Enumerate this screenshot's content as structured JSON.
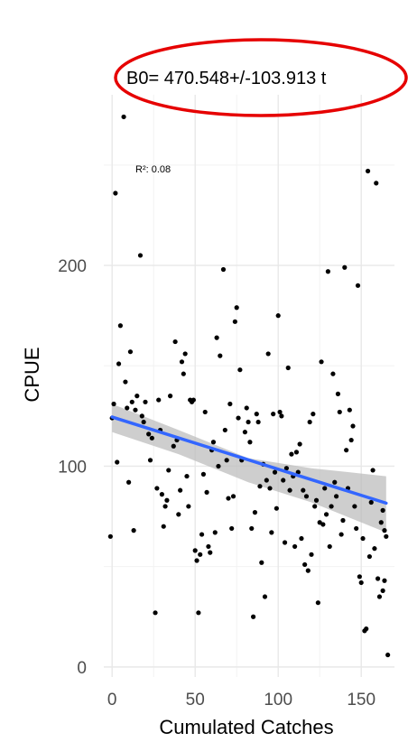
{
  "chart_data": {
    "type": "scatter",
    "title": "",
    "xlabel": "Cumulated Catches",
    "ylabel": "CPUE",
    "xlim": [
      -5,
      170
    ],
    "ylim": [
      -5,
      285
    ],
    "x_ticks": [
      0,
      50,
      100,
      150
    ],
    "y_ticks": [
      0,
      100,
      200
    ],
    "x_tick_labels": [
      "0",
      "50",
      "100",
      "150"
    ],
    "y_tick_labels": [
      "0",
      "100",
      "200"
    ],
    "grid": true,
    "annotation": "B0= 470.548+/-103.913 t",
    "annotation_highlight_color": "#e60000",
    "r2_label": "R²:  0.08",
    "point_color": "#000000",
    "fit": {
      "intercept": 124.5,
      "slope": -0.26,
      "x_range": [
        0,
        165
      ],
      "color": "#3366ff",
      "band_color": "#bdbdbd",
      "band_upper": [
        [
          0,
          131
        ],
        [
          40,
          118
        ],
        [
          82,
          104
        ],
        [
          120,
          99
        ],
        [
          165,
          95
        ]
      ],
      "band_lower": [
        [
          0,
          117
        ],
        [
          40,
          106
        ],
        [
          82,
          92
        ],
        [
          120,
          82
        ],
        [
          165,
          67
        ]
      ]
    },
    "points": [
      [
        -1,
        65
      ],
      [
        0,
        124
      ],
      [
        1,
        131
      ],
      [
        2,
        236
      ],
      [
        3,
        102
      ],
      [
        4,
        151
      ],
      [
        5,
        170
      ],
      [
        7,
        274
      ],
      [
        8,
        142
      ],
      [
        9,
        129
      ],
      [
        10,
        92
      ],
      [
        11,
        157
      ],
      [
        12,
        132
      ],
      [
        13,
        68
      ],
      [
        14,
        128
      ],
      [
        15,
        135
      ],
      [
        17,
        205
      ],
      [
        18,
        125
      ],
      [
        19,
        122
      ],
      [
        20,
        132
      ],
      [
        22,
        116
      ],
      [
        23,
        103
      ],
      [
        24,
        114
      ],
      [
        26,
        27
      ],
      [
        27,
        89
      ],
      [
        28,
        133
      ],
      [
        29,
        118
      ],
      [
        30,
        86
      ],
      [
        31,
        70
      ],
      [
        32,
        80
      ],
      [
        33,
        83
      ],
      [
        34,
        98
      ],
      [
        35,
        135
      ],
      [
        37,
        110
      ],
      [
        38,
        162
      ],
      [
        39,
        113
      ],
      [
        40,
        76
      ],
      [
        41,
        88
      ],
      [
        42,
        152
      ],
      [
        43,
        146
      ],
      [
        44,
        156
      ],
      [
        45,
        95
      ],
      [
        46,
        80
      ],
      [
        47,
        133
      ],
      [
        48,
        132
      ],
      [
        49,
        133
      ],
      [
        50,
        58
      ],
      [
        51,
        53
      ],
      [
        52,
        27
      ],
      [
        53,
        56
      ],
      [
        54,
        66
      ],
      [
        55,
        96
      ],
      [
        56,
        127
      ],
      [
        57,
        87
      ],
      [
        58,
        60
      ],
      [
        59,
        57
      ],
      [
        60,
        108
      ],
      [
        61,
        112
      ],
      [
        62,
        67
      ],
      [
        63,
        164
      ],
      [
        64,
        100
      ],
      [
        65,
        155
      ],
      [
        67,
        198
      ],
      [
        68,
        118
      ],
      [
        69,
        103
      ],
      [
        70,
        84
      ],
      [
        71,
        131
      ],
      [
        72,
        69
      ],
      [
        73,
        85
      ],
      [
        74,
        172
      ],
      [
        75,
        179
      ],
      [
        76,
        124
      ],
      [
        77,
        148
      ],
      [
        78,
        103
      ],
      [
        80,
        117
      ],
      [
        81,
        129
      ],
      [
        82,
        122
      ],
      [
        83,
        112
      ],
      [
        84,
        69
      ],
      [
        85,
        25
      ],
      [
        86,
        77
      ],
      [
        87,
        126
      ],
      [
        88,
        122
      ],
      [
        89,
        90
      ],
      [
        90,
        52
      ],
      [
        91,
        101
      ],
      [
        92,
        35
      ],
      [
        93,
        93
      ],
      [
        94,
        156
      ],
      [
        95,
        89
      ],
      [
        96,
        67
      ],
      [
        97,
        126
      ],
      [
        98,
        97
      ],
      [
        99,
        79
      ],
      [
        100,
        175
      ],
      [
        101,
        127
      ],
      [
        102,
        125
      ],
      [
        103,
        93
      ],
      [
        104,
        62
      ],
      [
        105,
        99
      ],
      [
        106,
        149
      ],
      [
        107,
        88
      ],
      [
        108,
        106
      ],
      [
        109,
        95
      ],
      [
        110,
        60
      ],
      [
        111,
        107
      ],
      [
        112,
        97
      ],
      [
        113,
        111
      ],
      [
        114,
        64
      ],
      [
        115,
        88
      ],
      [
        116,
        51
      ],
      [
        117,
        85
      ],
      [
        118,
        48
      ],
      [
        119,
        122
      ],
      [
        120,
        56
      ],
      [
        121,
        126
      ],
      [
        122,
        80
      ],
      [
        123,
        83
      ],
      [
        124,
        32
      ],
      [
        125,
        72
      ],
      [
        126,
        152
      ],
      [
        127,
        71
      ],
      [
        128,
        89
      ],
      [
        129,
        76
      ],
      [
        130,
        197
      ],
      [
        131,
        60
      ],
      [
        132,
        80
      ],
      [
        133,
        146
      ],
      [
        134,
        92
      ],
      [
        135,
        85
      ],
      [
        136,
        136
      ],
      [
        137,
        127
      ],
      [
        138,
        66
      ],
      [
        139,
        73
      ],
      [
        140,
        199
      ],
      [
        141,
        108
      ],
      [
        142,
        89
      ],
      [
        143,
        128
      ],
      [
        144,
        113
      ],
      [
        145,
        120
      ],
      [
        146,
        80
      ],
      [
        147,
        69
      ],
      [
        148,
        190
      ],
      [
        149,
        45
      ],
      [
        150,
        42
      ],
      [
        151,
        64
      ],
      [
        152,
        18
      ],
      [
        153,
        19
      ],
      [
        154,
        247
      ],
      [
        155,
        55
      ],
      [
        156,
        82
      ],
      [
        157,
        98
      ],
      [
        158,
        59
      ],
      [
        159,
        241
      ],
      [
        160,
        44
      ],
      [
        161,
        35
      ],
      [
        162,
        72
      ],
      [
        163,
        38
      ],
      [
        164,
        43
      ],
      [
        165,
        65
      ],
      [
        166,
        6
      ],
      [
        163,
        78
      ],
      [
        164,
        68
      ]
    ]
  }
}
